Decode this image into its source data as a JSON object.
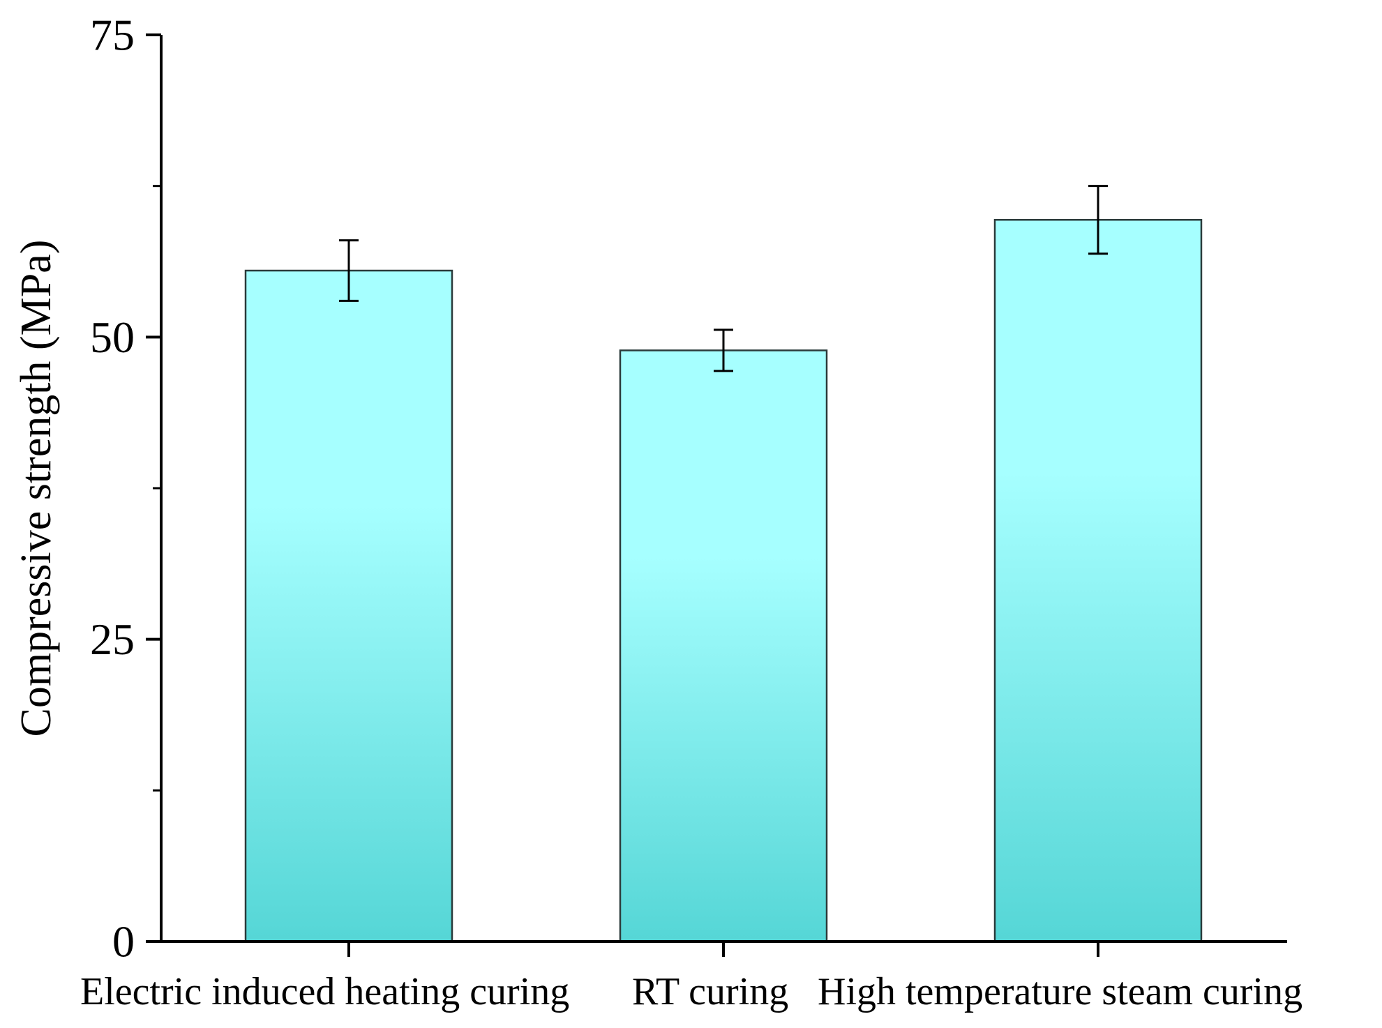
{
  "chart_data": {
    "type": "bar",
    "title": "",
    "xlabel": "",
    "ylabel": "Compressive strength (MPa)",
    "ylim": [
      0,
      75
    ],
    "major_ticks": [
      0,
      25,
      50,
      75
    ],
    "minor_ticks": [
      12.5,
      37.5,
      62.5
    ],
    "tick_labels": [
      "0",
      "25",
      "50",
      "75"
    ],
    "categories": [
      "Electric induced heating curing",
      "RT curing",
      "High temperature steam curing"
    ],
    "values": [
      55.5,
      48.9,
      59.7
    ],
    "errors": [
      2.5,
      1.7,
      2.8
    ],
    "grid": false,
    "legend": "none"
  },
  "style": {
    "bar_top_color": "#a6ffff",
    "bar_bottom_color": "#55d6d6",
    "bar_edge_color": "#2b3a3a",
    "axis_color": "#000000",
    "error_bar_color": "#000000"
  }
}
